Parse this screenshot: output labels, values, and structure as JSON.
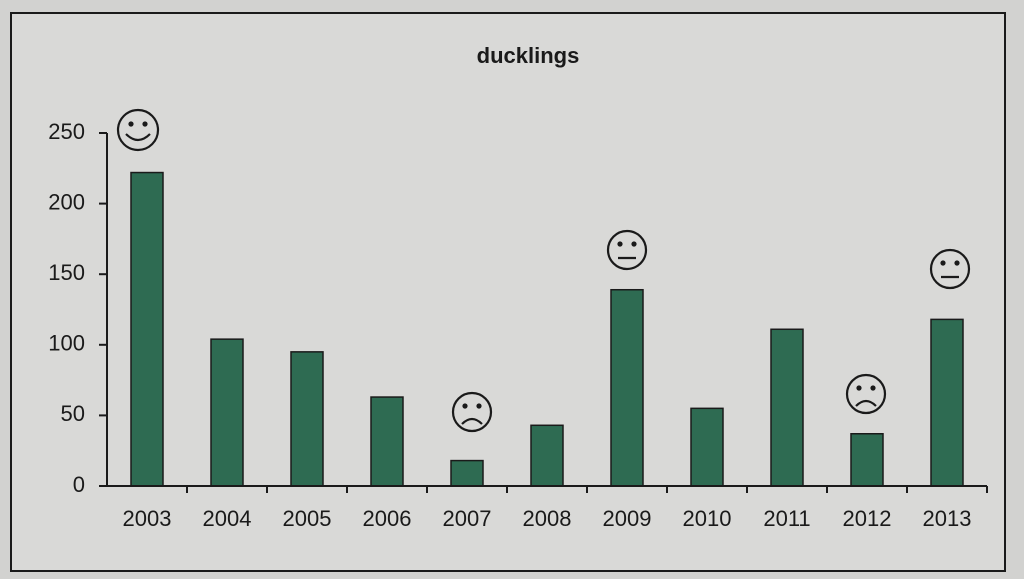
{
  "chart_data": {
    "type": "bar",
    "title": "ducklings",
    "categories": [
      "2003",
      "2004",
      "2005",
      "2006",
      "2007",
      "2008",
      "2009",
      "2010",
      "2011",
      "2012",
      "2013"
    ],
    "values": [
      222,
      104,
      95,
      63,
      18,
      43,
      139,
      55,
      111,
      37,
      118
    ],
    "color": "#2e6b52",
    "ylim": [
      0,
      250
    ],
    "yticks": [
      0,
      50,
      100,
      150,
      200,
      250
    ]
  }
}
